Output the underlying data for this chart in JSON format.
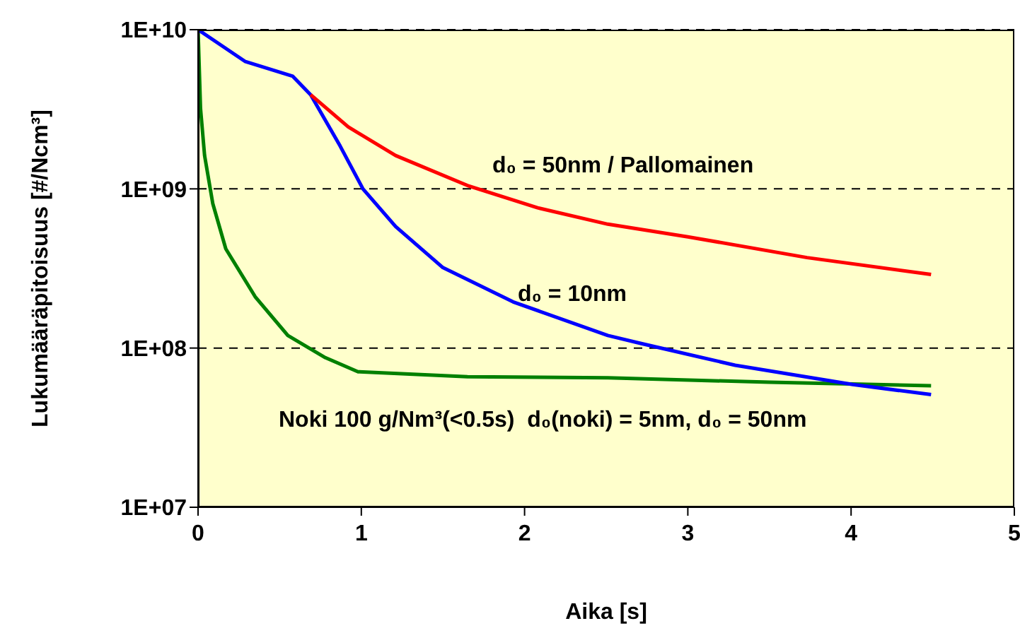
{
  "chart_data": {
    "type": "line",
    "xlabel": "Aika [s]",
    "ylabel": "Lukumääräpitoisuus [#/Ncm³]",
    "log": "y",
    "grid": "y",
    "line_style": "solid",
    "xlim": [
      0,
      5
    ],
    "xticks": [
      0,
      1,
      2,
      3,
      4,
      5
    ],
    "ylim": [
      10000000.0,
      10000000000.0
    ],
    "yticks": [
      {
        "value": 10000000.0,
        "label": "1E+07"
      },
      {
        "value": 100000000.0,
        "label": "1E+08"
      },
      {
        "value": 1000000000.0,
        "label": "1E+09"
      },
      {
        "value": 10000000000.0,
        "label": "1E+10"
      }
    ],
    "series": [
      {
        "color": "#ff0000",
        "x": [
          0.69,
          0.92,
          1.21,
          1.65,
          2.08,
          2.51,
          3.0,
          3.73,
          4.49
        ],
        "values": [
          3900000000.0,
          2450000000.0,
          1620000000.0,
          1050000000.0,
          760000000.0,
          600000000.0,
          500000000.0,
          370000000.0,
          290000000.0
        ]
      },
      {
        "color": "#0000ff",
        "x": [
          0,
          0.29,
          0.58,
          0.69,
          0.87,
          1.01,
          1.21,
          1.5,
          1.93,
          2.51,
          2.71,
          3.29,
          4.01,
          4.49
        ],
        "values": [
          10000000000.0,
          6300000000.0,
          5100000000.0,
          3900000000.0,
          1860000000.0,
          1000000000.0,
          580000000.0,
          320000000.0,
          195000000.0,
          120000000.0,
          107000000.0,
          78000000.0,
          59000000.0,
          51000000.0
        ]
      },
      {
        "color": "#008000",
        "x": [
          0,
          0.015,
          0.04,
          0.09,
          0.17,
          0.35,
          0.55,
          0.78,
          0.98,
          1.65,
          2.51,
          3.5,
          4.49
        ],
        "values": [
          10000000000.0,
          3200000000.0,
          1620000000.0,
          810000000.0,
          420000000.0,
          210000000.0,
          120000000.0,
          87000000.0,
          71000000.0,
          66000000.0,
          65000000.0,
          61000000.0,
          58000000.0
        ]
      }
    ],
    "annotations": [
      "d₀ = 50nm / Pallomainen",
      "d₀ = 10nm",
      "Noki 100 g/Nm³(<0.5s)  d₀(noki) = 5nm, d₀ = 50nm"
    ]
  }
}
